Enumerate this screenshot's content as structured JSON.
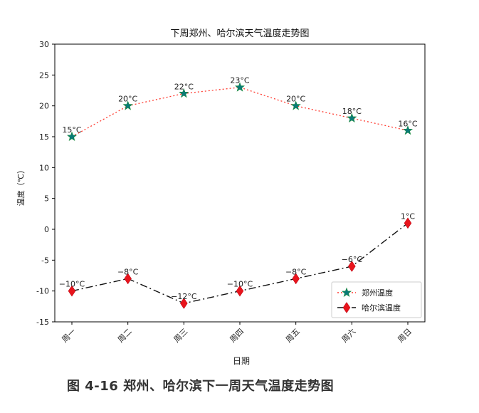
{
  "chart_data": {
    "type": "line",
    "title": "下周郑州、哈尔滨天气温度走势图",
    "xlabel": "日期",
    "ylabel": "温度（℃）",
    "categories": [
      "周一",
      "周二",
      "周三",
      "周四",
      "周五",
      "周六",
      "周日"
    ],
    "ylim": [
      -15,
      30
    ],
    "yticks": [
      "-15",
      "-10",
      "-5",
      "0",
      "5",
      "10",
      "15",
      "20",
      "25",
      "30"
    ],
    "grid": false,
    "legend_position": "lower-right",
    "series": [
      {
        "name": "郑州温度",
        "values": [
          15,
          20,
          22,
          23,
          20,
          18,
          16
        ],
        "labels": [
          "15°C",
          "20°C",
          "22°C",
          "23°C",
          "20°C",
          "18°C",
          "16°C"
        ],
        "line_color": "#ff3b30",
        "line_style": "dotted",
        "marker": "star",
        "marker_color": "#0a7a78"
      },
      {
        "name": "哈尔滨温度",
        "values": [
          -10,
          -8,
          -12,
          -10,
          -8,
          -6,
          1
        ],
        "labels": [
          "−10°C",
          "−8°C",
          "−12°C",
          "−10°C",
          "−8°C",
          "−6°C",
          "1°C"
        ],
        "line_color": "#111111",
        "line_style": "dashdot",
        "marker": "diamond",
        "marker_color": "#e8141c"
      }
    ]
  },
  "caption": "图 4-16  郑州、哈尔滨下一周天气温度走势图"
}
